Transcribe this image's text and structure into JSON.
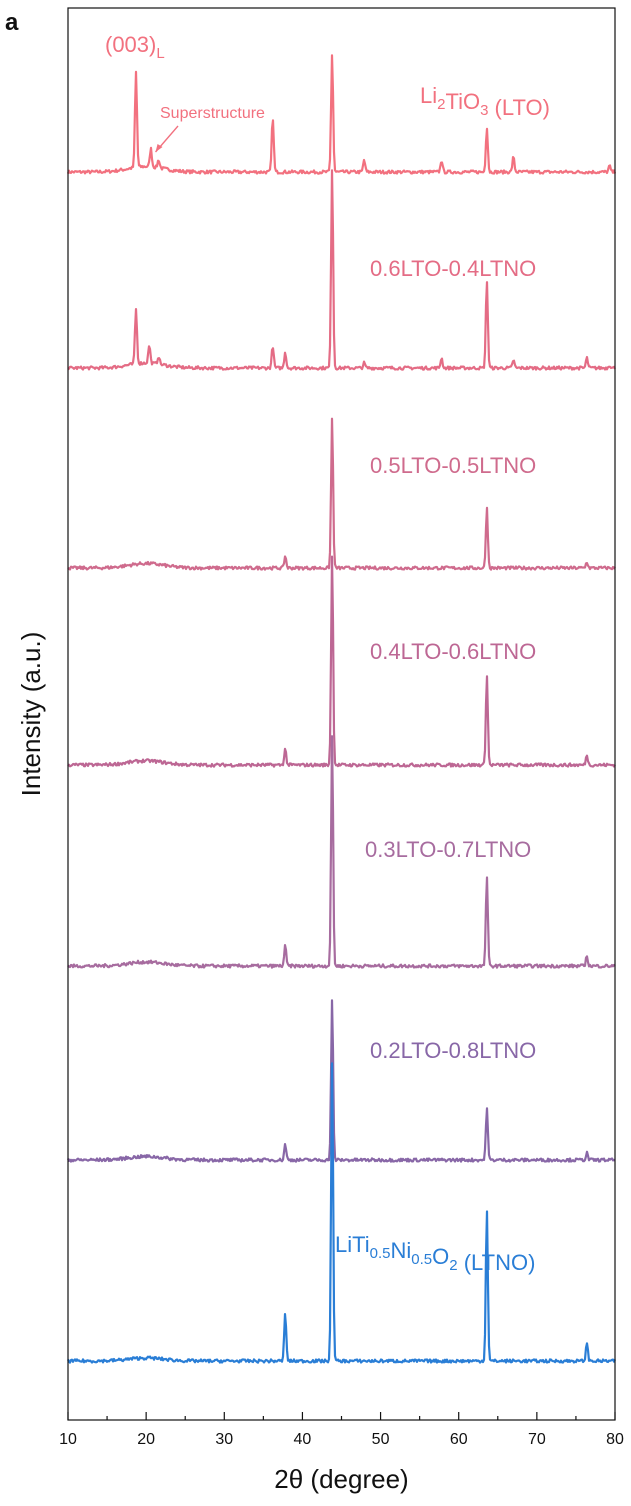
{
  "chart_data": {
    "type": "line",
    "panel_label": "a",
    "xlabel": "2θ (degree)",
    "ylabel": "Intensity (a.u.)",
    "xlim": [
      10,
      80
    ],
    "x_ticks": [
      10,
      20,
      30,
      40,
      50,
      60,
      70,
      80
    ],
    "y_ticks_shown": false,
    "grid": false,
    "legend": "none (series labeled inline above each trace)",
    "layout": "vertically offset stacked traces",
    "series": [
      {
        "label_main": "Li",
        "label_parts": [
          {
            "t": "Li"
          },
          {
            "t": "2",
            "sub": true
          },
          {
            "t": "TiO"
          },
          {
            "t": "3",
            "sub": true
          },
          {
            "t": " (LTO)"
          }
        ],
        "color": "#F2717F",
        "halo": 0.55,
        "peaks": [
          [
            18.7,
            95
          ],
          [
            20.6,
            18
          ],
          [
            21.6,
            8
          ],
          [
            36.2,
            55
          ],
          [
            37.8,
            0
          ],
          [
            43.8,
            118
          ],
          [
            47.9,
            12
          ],
          [
            57.8,
            12
          ],
          [
            63.6,
            45
          ],
          [
            67.0,
            15
          ],
          [
            76.4,
            0
          ],
          [
            79.3,
            6
          ]
        ],
        "annotations": [
          {
            "text": "(003)",
            "sub": "L"
          },
          {
            "text": "Superstructure"
          }
        ]
      },
      {
        "label_parts": [
          {
            "t": "0.6LTO-0.4LTNO"
          }
        ],
        "color": "#E46C85",
        "halo": 0.5,
        "peaks": [
          [
            18.7,
            55
          ],
          [
            20.4,
            18
          ],
          [
            21.6,
            8
          ],
          [
            36.2,
            22
          ],
          [
            37.8,
            16
          ],
          [
            43.8,
            200
          ],
          [
            47.9,
            5
          ],
          [
            57.8,
            10
          ],
          [
            63.6,
            88
          ],
          [
            67.0,
            8
          ],
          [
            76.4,
            10
          ],
          [
            79.3,
            3
          ]
        ]
      },
      {
        "label_parts": [
          {
            "t": "0.5LTO-0.5LTNO"
          }
        ],
        "color": "#CF6B8D",
        "halo": 0.45,
        "peaks": [
          [
            37.8,
            12
          ],
          [
            43.8,
            150
          ],
          [
            63.6,
            60
          ],
          [
            76.4,
            6
          ]
        ]
      },
      {
        "label_parts": [
          {
            "t": "0.4LTO-0.6LTNO"
          }
        ],
        "color": "#BD6794",
        "halo": 0.42,
        "peaks": [
          [
            37.8,
            16
          ],
          [
            43.8,
            210
          ],
          [
            63.6,
            90
          ],
          [
            76.4,
            10
          ]
        ]
      },
      {
        "label_parts": [
          {
            "t": "0.3LTO-0.7LTNO"
          }
        ],
        "color": "#A76C9F",
        "halo": 0.4,
        "peaks": [
          [
            37.8,
            20
          ],
          [
            43.8,
            230
          ],
          [
            63.6,
            90
          ],
          [
            76.4,
            10
          ]
        ]
      },
      {
        "label_parts": [
          {
            "t": "0.2LTO-0.8LTNO"
          }
        ],
        "color": "#8867A7",
        "halo": 0.35,
        "peaks": [
          [
            37.8,
            16
          ],
          [
            43.8,
            160
          ],
          [
            63.6,
            52
          ],
          [
            76.4,
            7
          ]
        ]
      },
      {
        "label_parts": [
          {
            "t": "LiTi"
          },
          {
            "t": "0.5",
            "sub": true
          },
          {
            "t": "Ni"
          },
          {
            "t": "0.5",
            "sub": true
          },
          {
            "t": "O"
          },
          {
            "t": "2",
            "sub": true
          },
          {
            "t": " (LTNO)"
          }
        ],
        "color": "#2A7ED6",
        "halo": 0.3,
        "peaks": [
          [
            37.8,
            48
          ],
          [
            43.8,
            300
          ],
          [
            63.6,
            152
          ],
          [
            76.4,
            18
          ]
        ]
      }
    ]
  }
}
